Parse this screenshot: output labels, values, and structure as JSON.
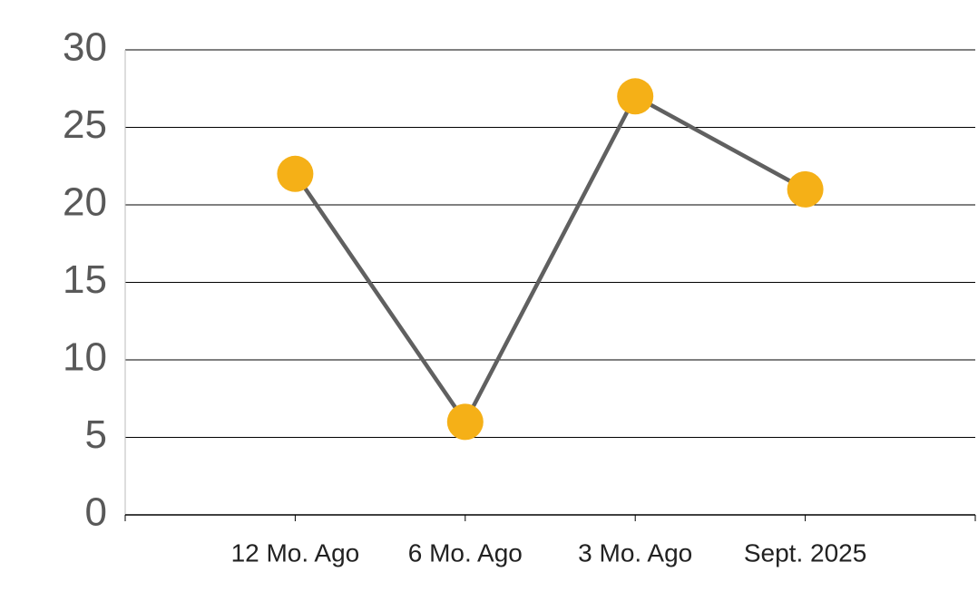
{
  "chart_data": {
    "type": "line",
    "categories": [
      "12 Mo. Ago",
      "6 Mo. Ago",
      "3 Mo. Ago",
      "Sept. 2025"
    ],
    "values": [
      22,
      6,
      27,
      21
    ],
    "color": "#606060",
    "marker_color": "#f5b017",
    "ylim": [
      0,
      30
    ],
    "yticks": [
      0,
      5,
      10,
      15,
      20,
      25,
      30
    ],
    "grid": true
  }
}
